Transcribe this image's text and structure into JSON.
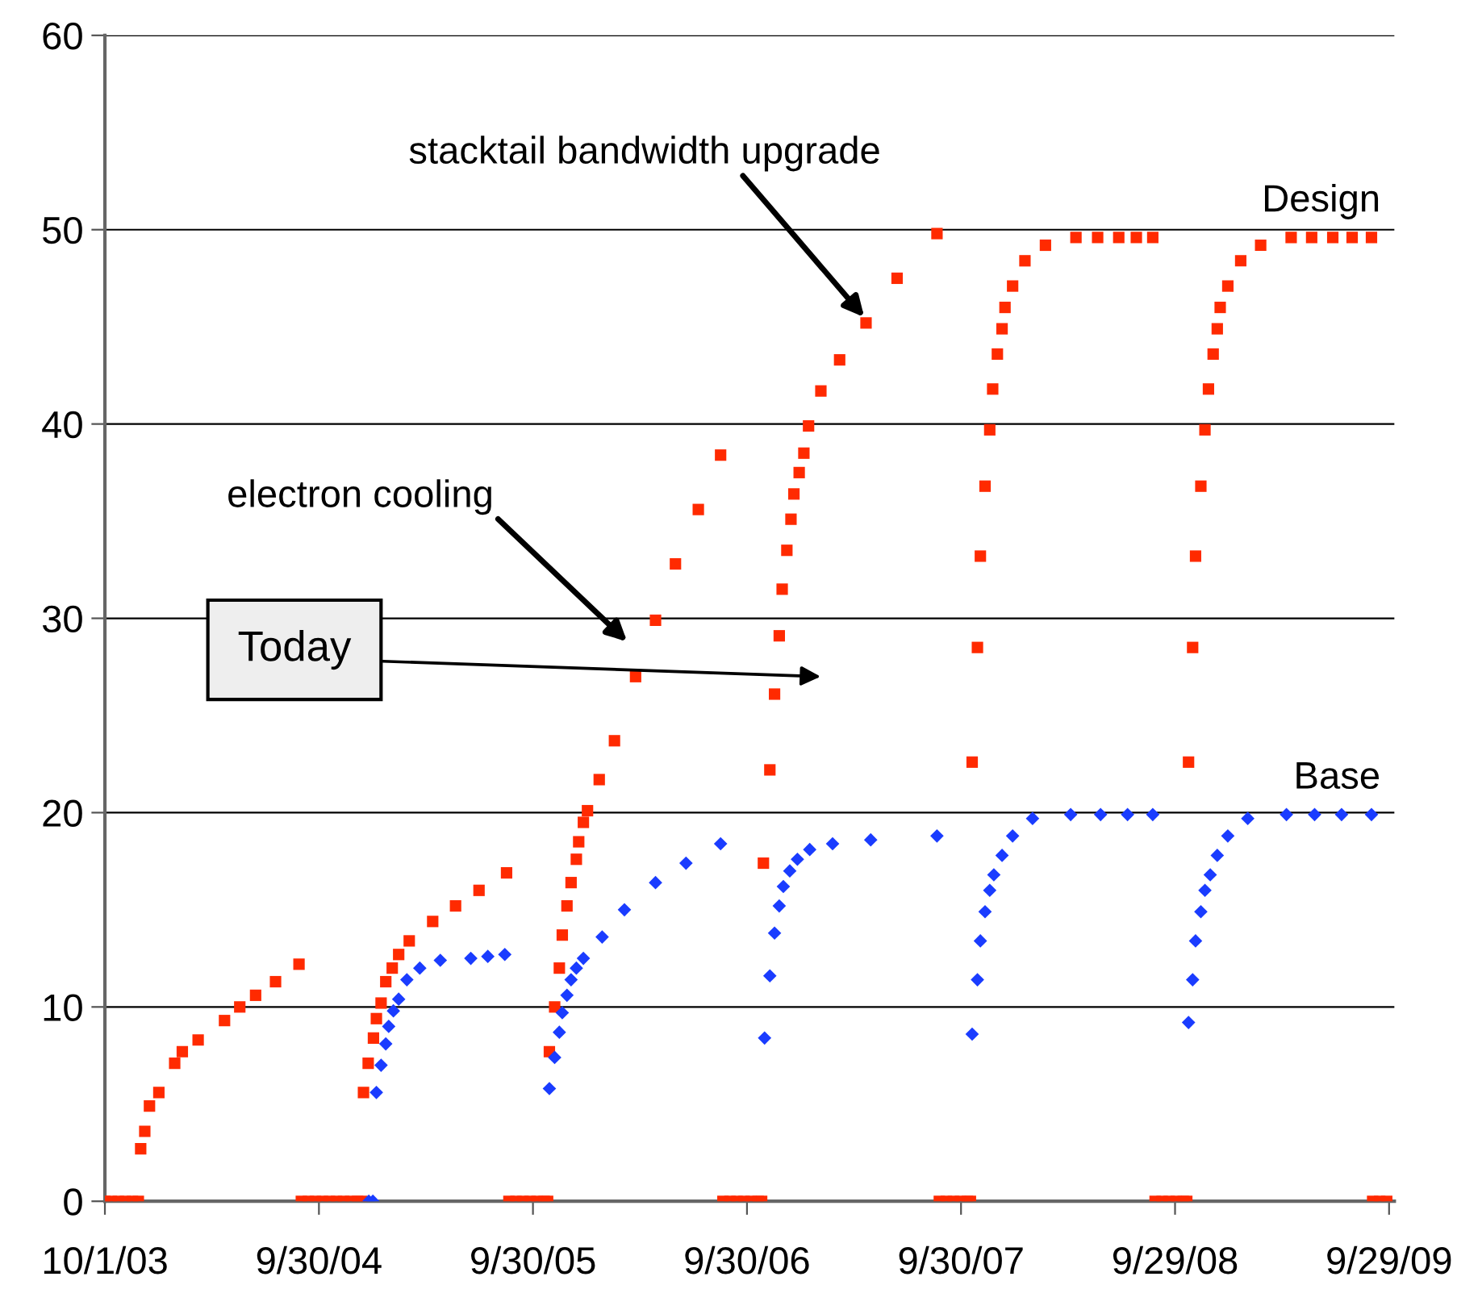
{
  "chart_data": {
    "type": "scatter",
    "xlim": [
      "2003-10-01",
      "2009-10-08"
    ],
    "xticks": [
      {
        "value": "2003-10-01",
        "label": "10/1/03"
      },
      {
        "value": "2004-09-30",
        "label": "9/30/04"
      },
      {
        "value": "2005-09-30",
        "label": "9/30/05"
      },
      {
        "value": "2006-09-30",
        "label": "9/30/06"
      },
      {
        "value": "2007-09-30",
        "label": "9/30/07"
      },
      {
        "value": "2008-09-29",
        "label": "9/29/08"
      },
      {
        "value": "2009-09-29",
        "label": "9/29/09"
      }
    ],
    "ylim": [
      0,
      60
    ],
    "yticks": [
      0,
      10,
      20,
      30,
      40,
      50,
      60
    ],
    "grid": "y",
    "legend": false,
    "series": [
      {
        "name": "Design",
        "color": "#ff2a00",
        "marker": "square",
        "x": [
          "2003-10-01",
          "2003-10-12",
          "2003-10-24",
          "2003-11-05",
          "2003-11-17",
          "2003-11-27",
          "2003-12-01",
          "2003-12-08",
          "2003-12-16",
          "2004-01-01",
          "2004-01-28",
          "2004-02-10",
          "2004-03-08",
          "2004-04-22",
          "2004-05-18",
          "2004-06-14",
          "2004-07-18",
          "2004-08-27",
          "2004-08-31",
          "2004-09-12",
          "2004-09-24",
          "2004-10-06",
          "2004-10-18",
          "2004-10-30",
          "2004-11-11",
          "2004-11-23",
          "2004-12-05",
          "2004-12-12",
          "2004-12-15",
          "2004-12-23",
          "2005-01-01",
          "2005-01-06",
          "2005-01-14",
          "2005-01-22",
          "2005-02-02",
          "2005-02-13",
          "2005-03-03",
          "2005-04-12",
          "2005-05-21",
          "2005-06-30",
          "2005-08-16",
          "2005-08-20",
          "2005-09-01",
          "2005-09-13",
          "2005-09-25",
          "2005-10-07",
          "2005-10-19",
          "2005-10-25",
          "2005-10-28",
          "2005-11-06",
          "2005-11-14",
          "2005-11-19",
          "2005-11-27",
          "2005-12-04",
          "2005-12-13",
          "2005-12-17",
          "2005-12-25",
          "2006-01-01",
          "2006-01-21",
          "2006-02-16",
          "2006-03-24",
          "2006-04-27",
          "2006-05-31",
          "2006-07-09",
          "2006-08-16",
          "2006-08-20",
          "2006-09-01",
          "2006-09-13",
          "2006-09-25",
          "2006-10-07",
          "2006-10-19",
          "2006-10-25",
          "2006-10-28",
          "2006-11-08",
          "2006-11-16",
          "2006-11-24",
          "2006-11-29",
          "2006-12-07",
          "2006-12-14",
          "2006-12-19",
          "2006-12-28",
          "2007-01-05",
          "2007-01-13",
          "2007-02-03",
          "2007-03-07",
          "2007-04-21",
          "2007-06-13",
          "2007-08-20",
          "2007-08-24",
          "2007-09-05",
          "2007-09-17",
          "2007-09-29",
          "2007-10-11",
          "2007-10-16",
          "2007-10-19",
          "2007-10-28",
          "2007-11-02",
          "2007-11-10",
          "2007-11-18",
          "2007-11-23",
          "2007-12-01",
          "2007-12-09",
          "2007-12-14",
          "2007-12-27",
          "2008-01-17",
          "2008-02-21",
          "2008-04-13",
          "2008-05-20",
          "2008-06-25",
          "2008-07-25",
          "2008-08-22",
          "2008-08-26",
          "2008-09-07",
          "2008-09-19",
          "2008-10-01",
          "2008-10-13",
          "2008-10-19",
          "2008-10-22",
          "2008-10-29",
          "2008-11-03",
          "2008-11-12",
          "2008-11-19",
          "2008-11-25",
          "2008-12-03",
          "2008-12-10",
          "2008-12-15",
          "2008-12-28",
          "2009-01-19",
          "2009-02-22",
          "2009-04-15",
          "2009-05-20",
          "2009-06-25",
          "2009-07-28",
          "2009-08-30",
          "2009-09-01",
          "2009-09-13",
          "2009-09-25"
        ],
        "values": [
          0,
          0,
          0,
          0,
          0,
          0,
          2.7,
          3.6,
          4.9,
          5.6,
          7.1,
          7.7,
          8.3,
          9.3,
          10.0,
          10.6,
          11.3,
          12.2,
          0,
          0,
          0,
          0,
          0,
          0,
          0,
          0,
          0,
          0,
          5.6,
          7.1,
          8.4,
          9.4,
          10.2,
          11.3,
          12.0,
          12.7,
          13.4,
          14.4,
          15.2,
          16.0,
          16.9,
          0,
          0,
          0,
          0,
          0,
          0,
          0,
          7.7,
          10.0,
          12.0,
          13.7,
          15.2,
          16.4,
          17.6,
          18.5,
          19.5,
          20.1,
          21.7,
          23.7,
          27.0,
          29.9,
          32.8,
          35.6,
          38.4,
          0,
          0,
          0,
          0,
          0,
          0,
          0,
          17.4,
          22.2,
          26.1,
          29.1,
          31.5,
          33.5,
          35.1,
          36.4,
          37.5,
          38.5,
          39.9,
          41.7,
          43.3,
          45.2,
          47.5,
          49.8,
          0,
          0,
          0,
          0,
          0,
          0,
          22.6,
          28.5,
          33.2,
          36.8,
          39.7,
          41.8,
          43.6,
          44.9,
          46.0,
          47.1,
          48.4,
          49.2,
          49.6,
          49.6,
          49.6,
          49.6,
          49.6,
          0,
          0,
          0,
          0,
          0,
          0,
          22.6,
          28.5,
          33.2,
          36.8,
          39.7,
          41.8,
          43.6,
          44.9,
          46.0,
          47.1,
          48.4,
          49.2,
          49.6,
          49.6,
          49.6,
          49.6,
          49.6,
          0,
          0,
          0
        ]
      },
      {
        "name": "Base",
        "color": "#1a3cff",
        "marker": "diamond",
        "x": [
          "2004-12-24",
          "2004-12-31",
          "2005-01-06",
          "2005-01-14",
          "2005-01-22",
          "2005-01-27",
          "2005-02-04",
          "2005-02-13",
          "2005-02-27",
          "2005-03-21",
          "2005-04-25",
          "2005-06-16",
          "2005-07-15",
          "2005-08-13",
          "2005-10-28",
          "2005-11-06",
          "2005-11-14",
          "2005-11-19",
          "2005-11-27",
          "2005-12-04",
          "2005-12-13",
          "2005-12-25",
          "2006-01-26",
          "2006-03-05",
          "2006-04-27",
          "2006-06-18",
          "2006-08-16",
          "2006-10-30",
          "2006-11-08",
          "2006-11-16",
          "2006-11-24",
          "2006-12-01",
          "2006-12-12",
          "2006-12-25",
          "2007-01-15",
          "2007-02-23",
          "2007-04-29",
          "2007-08-20",
          "2007-10-19",
          "2007-10-28",
          "2007-11-02",
          "2007-11-10",
          "2007-11-18",
          "2007-11-25",
          "2007-12-09",
          "2007-12-27",
          "2008-01-30",
          "2008-04-04",
          "2008-05-25",
          "2008-07-10",
          "2008-08-22",
          "2008-10-22",
          "2008-10-29",
          "2008-11-03",
          "2008-11-12",
          "2008-11-19",
          "2008-11-28",
          "2008-12-10",
          "2008-12-28",
          "2009-01-31",
          "2009-04-07",
          "2009-05-25",
          "2009-07-10",
          "2009-08-30"
        ],
        "values": [
          0,
          0,
          5.6,
          7.0,
          8.1,
          9.0,
          9.8,
          10.4,
          11.4,
          12.0,
          12.4,
          12.5,
          12.6,
          12.7,
          5.8,
          7.4,
          8.7,
          9.7,
          10.6,
          11.4,
          12.0,
          12.5,
          13.6,
          15.0,
          16.4,
          17.4,
          18.4,
          8.4,
          11.6,
          13.8,
          15.2,
          16.2,
          17.0,
          17.6,
          18.1,
          18.4,
          18.6,
          18.8,
          8.6,
          11.4,
          13.4,
          14.9,
          16.0,
          16.8,
          17.8,
          18.8,
          19.7,
          19.9,
          19.9,
          19.9,
          19.9,
          9.2,
          11.4,
          13.4,
          14.9,
          16.0,
          16.8,
          17.8,
          18.8,
          19.7,
          19.9,
          19.9,
          19.9,
          19.9
        ]
      }
    ],
    "annotations": [
      "electron cooling",
      {
        "text": "stacktail bandwidth upgrade",
        "x": "2007-04-18",
        "y": 45.5
      },
      "Today"
    ]
  }
}
